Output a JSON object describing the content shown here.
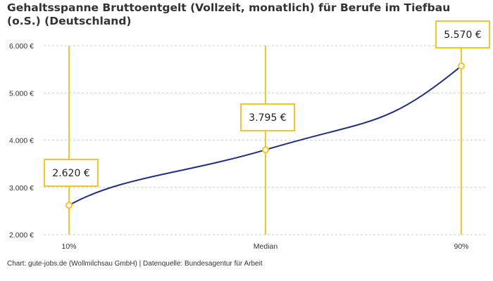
{
  "chart_data": {
    "type": "line",
    "title": "Gehaltsspanne Bruttoentgelt (Vollzeit, monatlich) für Berufe im Tiefbau (o.S.) (Deutschland)",
    "categories": [
      "10%",
      "Median",
      "90%"
    ],
    "values": [
      2620,
      3795,
      5570
    ],
    "value_labels": [
      "2.620 €",
      "3.795 €",
      "5.570 €"
    ],
    "ylim": [
      2000,
      6000
    ],
    "yticks": [
      2000,
      3000,
      4000,
      5000,
      6000
    ],
    "ytick_labels": [
      "2.000 €",
      "3.000 €",
      "4.000 €",
      "5.000 €",
      "6.000 €"
    ],
    "grid": true,
    "colors": {
      "line": "#1f2d86",
      "accent": "#f7c52b",
      "grid": "#cccccc"
    }
  },
  "credit": "Chart: gute-jobs.de (Wollmilchsau GmbH) | Datenquelle: Bundesagentur für Arbeit"
}
